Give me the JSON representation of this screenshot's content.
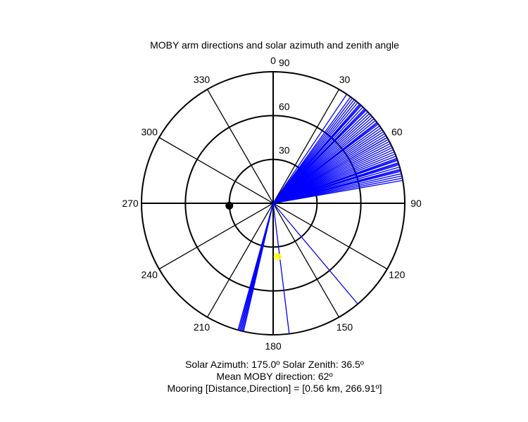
{
  "chart_data": {
    "type": "polar",
    "title": "MOBY arm directions and solar azimuth and zenith angle",
    "angle_ticks": [
      "0",
      "30",
      "60",
      "90",
      "120",
      "150",
      "180",
      "210",
      "240",
      "270",
      "300",
      "330"
    ],
    "radial_ticks": [
      "30",
      "60",
      "90"
    ],
    "radial_max": 90,
    "arm_directions_deg": [
      34,
      36,
      37,
      38,
      39,
      40,
      41,
      41.5,
      42,
      43,
      44,
      44.5,
      45,
      46,
      47,
      48,
      49,
      50,
      51,
      52,
      52.5,
      53,
      54,
      55,
      56,
      57,
      58,
      59,
      60,
      61,
      62,
      63,
      64,
      65,
      66,
      67,
      68,
      69,
      70,
      70.5,
      71,
      72,
      72.5,
      73,
      74,
      75,
      75.5,
      76,
      77,
      78,
      79,
      80,
      140,
      173,
      193,
      193.5,
      194,
      194.5,
      195,
      195.5
    ],
    "sun": {
      "azimuth": 175.0,
      "zenith": 36.5,
      "color": "#ffff00"
    },
    "mooring": {
      "direction": 266.91,
      "r": 30
    },
    "arm_color": "#0000ff",
    "grid_color": "#000000",
    "captions": [
      "Solar Azimuth: 175.0º   Solar Zenith: 36.5º",
      "Mean MOBY direction: 62º",
      "Mooring [Distance,Direction] = [0.56 km, 266.91º]"
    ]
  }
}
